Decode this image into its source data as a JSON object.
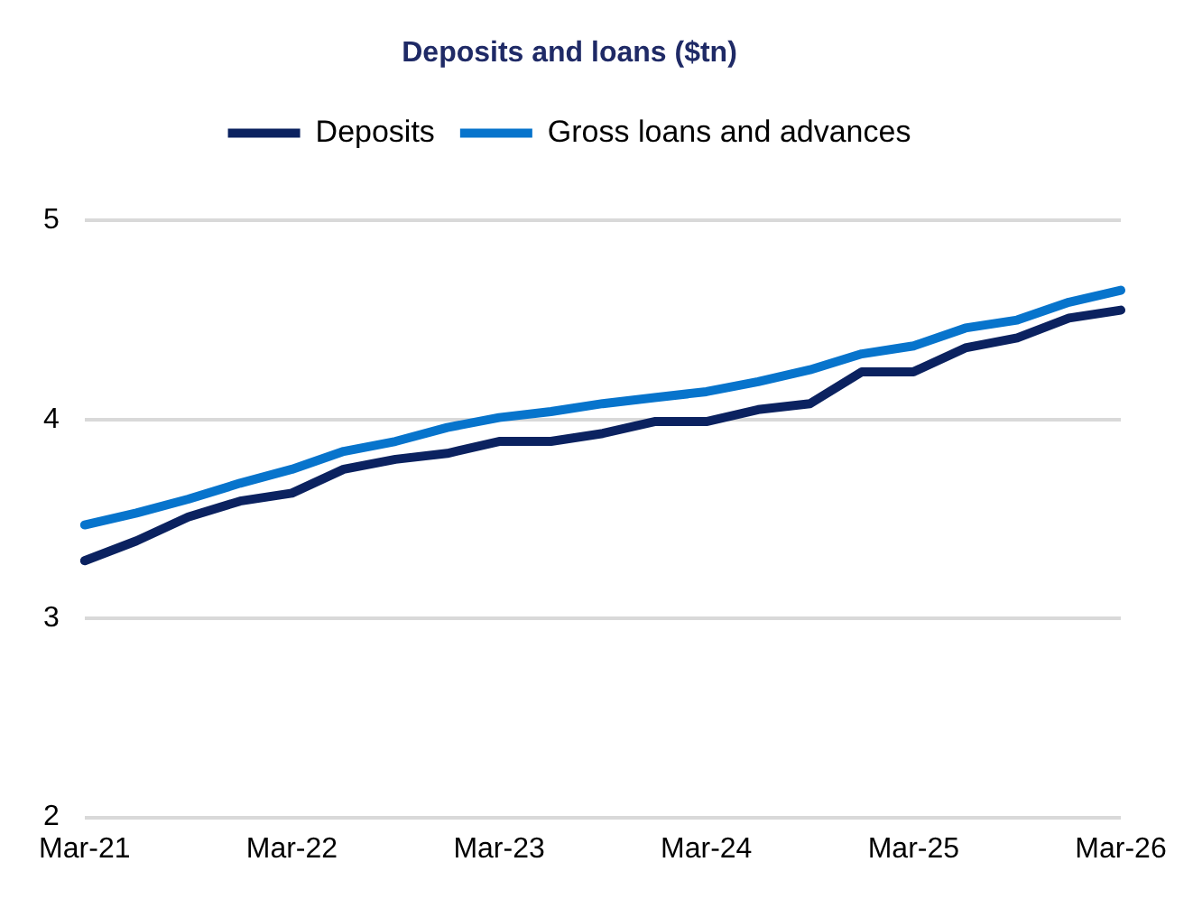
{
  "chart_data": {
    "type": "line",
    "title": "Deposits and loans ($tn)",
    "categories": [
      "Mar-21",
      null,
      null,
      null,
      "Mar-22",
      null,
      null,
      null,
      "Mar-23",
      null,
      null,
      null,
      "Mar-24",
      null,
      null,
      null,
      "Mar-25",
      null,
      null,
      null,
      "Mar-26"
    ],
    "series": [
      {
        "name": "Deposits",
        "color": "#0b2260",
        "values": [
          3.29,
          3.39,
          3.51,
          3.59,
          3.63,
          3.75,
          3.8,
          3.83,
          3.89,
          3.89,
          3.93,
          3.99,
          3.99,
          4.05,
          4.08,
          4.24,
          4.24,
          4.36,
          4.41,
          4.51,
          4.55
        ]
      },
      {
        "name": "Gross loans and advances",
        "color": "#0774cc",
        "values": [
          3.47,
          3.53,
          3.6,
          3.68,
          3.75,
          3.84,
          3.89,
          3.96,
          4.01,
          4.04,
          4.08,
          4.11,
          4.14,
          4.19,
          4.25,
          4.33,
          4.37,
          4.46,
          4.5,
          4.59,
          4.65
        ]
      }
    ],
    "ylim": [
      2,
      5
    ],
    "yticks": [
      2,
      3,
      4,
      5
    ],
    "grid": "y",
    "legend": "top",
    "marker": "none",
    "line_style": "solid"
  }
}
